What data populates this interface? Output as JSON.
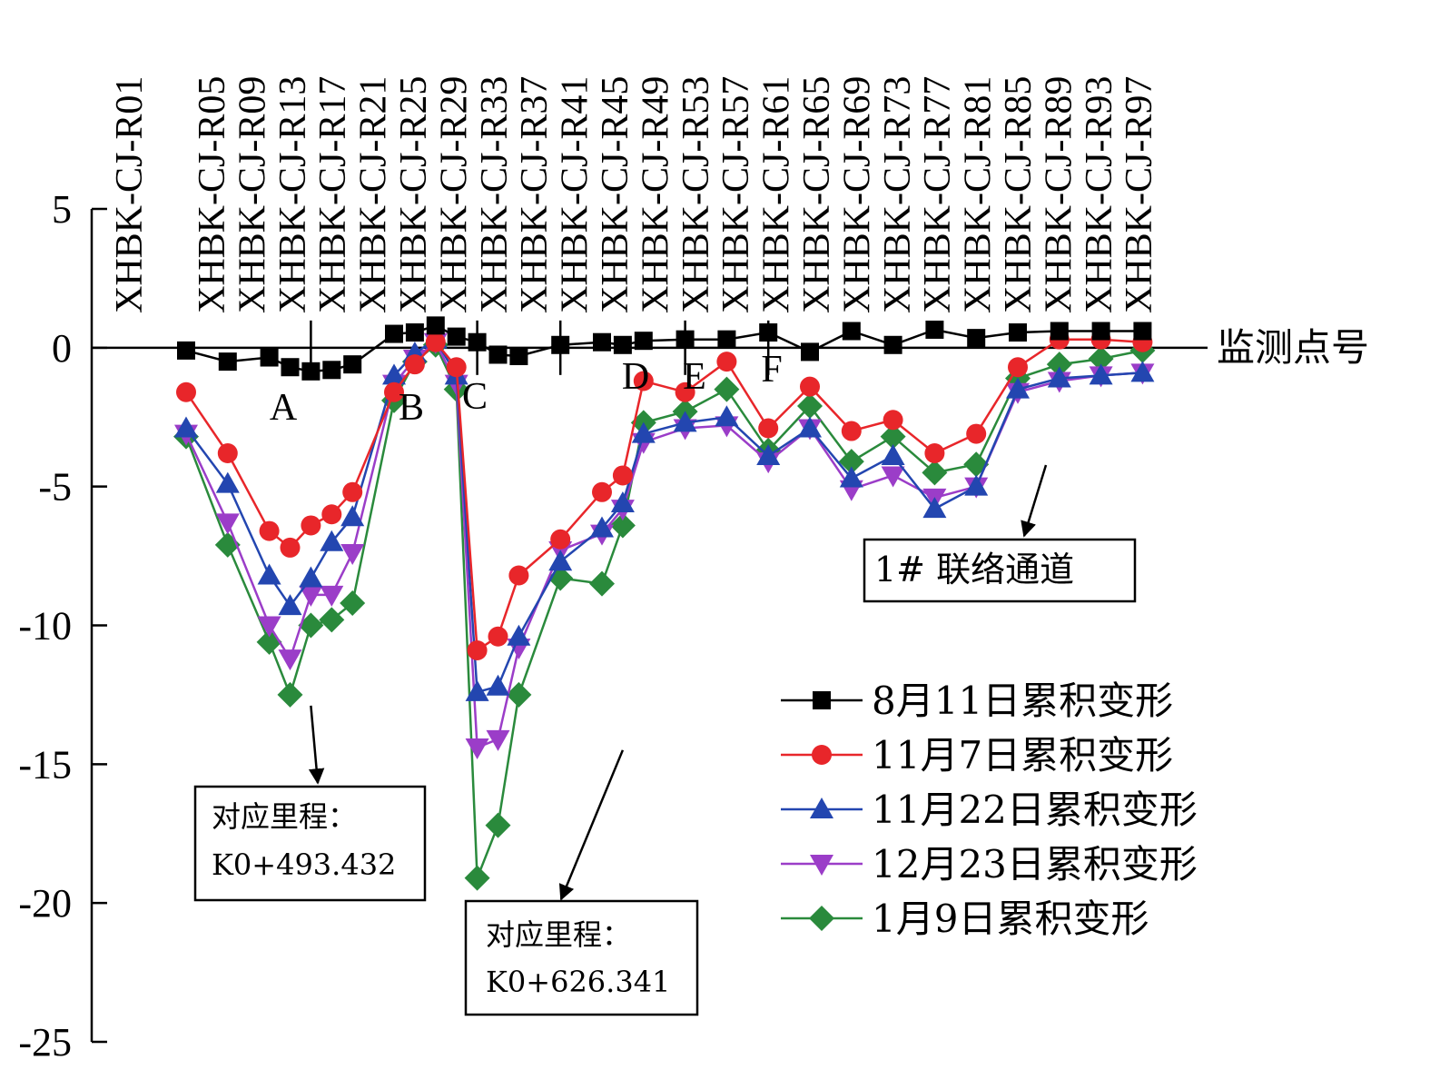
{
  "chart_data": {
    "type": "line",
    "xlabel": "监测点号",
    "ylim": [
      -25,
      5
    ],
    "yticks": [
      5,
      0,
      -5,
      -10,
      -15,
      -20,
      -25
    ],
    "categories": [
      "XHBK-CJ-R01",
      "XHBK-CJ-R05",
      "XHBK-CJ-R09",
      "XHBK-CJ-R13",
      "XHBK-CJ-R17",
      "XHBK-CJ-R21",
      "XHBK-CJ-R25",
      "XHBK-CJ-R29",
      "XHBK-CJ-R33",
      "XHBK-CJ-R37",
      "XHBK-CJ-R41",
      "XHBK-CJ-R45",
      "XHBK-CJ-R49",
      "XHBK-CJ-R53",
      "XHBK-CJ-R57",
      "XHBK-CJ-R61",
      "XHBK-CJ-R65",
      "XHBK-CJ-R69",
      "XHBK-CJ-R73",
      "XHBK-CJ-R77",
      "XHBK-CJ-R81",
      "XHBK-CJ-R85",
      "XHBK-CJ-R89",
      "XHBK-CJ-R93",
      "XHBK-CJ-R97"
    ],
    "x": [
      2,
      3,
      4,
      4.5,
      5,
      5.5,
      6,
      7,
      7.5,
      8,
      8.5,
      9,
      9.5,
      10,
      11,
      12,
      12.5,
      13,
      14,
      15,
      16,
      17,
      18,
      19,
      20,
      21,
      22,
      23,
      24,
      25
    ],
    "series": [
      {
        "name": "8月11日累积变形",
        "color": "#000000",
        "marker": "square",
        "values": [
          -0.1,
          -0.5,
          -0.35,
          -0.7,
          -0.85,
          -0.8,
          -0.6,
          0.5,
          0.55,
          0.8,
          0.4,
          0.2,
          -0.25,
          -0.3,
          0.1,
          0.2,
          0.1,
          0.25,
          0.3,
          0.3,
          0.55,
          -0.15,
          0.6,
          0.1,
          0.65,
          0.35,
          0.55,
          0.6,
          0.6,
          0.6
        ]
      },
      {
        "name": "11月7日累积变形",
        "color": "#e8262a",
        "marker": "circle",
        "values": [
          -1.6,
          -3.8,
          -6.6,
          -7.2,
          -6.4,
          -6.0,
          -5.2,
          -1.6,
          -0.6,
          0.2,
          -0.7,
          -10.9,
          -10.4,
          -8.2,
          -6.9,
          -5.2,
          -4.6,
          -1.2,
          -1.6,
          -0.5,
          -2.9,
          -1.4,
          -3.0,
          -2.6,
          -3.8,
          -3.1,
          -0.7,
          0.3,
          0.3,
          0.2
        ]
      },
      {
        "name": "11月22日累积变形",
        "color": "#2346b0",
        "marker": "triangle-up",
        "values": [
          -2.9,
          -4.9,
          -8.2,
          -9.3,
          -8.3,
          -7.0,
          -6.1,
          -1.0,
          -0.2,
          0.3,
          -1.0,
          -12.4,
          -12.2,
          -10.4,
          -7.7,
          -6.5,
          -5.6,
          -3.1,
          -2.7,
          -2.5,
          -3.9,
          -2.9,
          -4.7,
          -3.9,
          -5.8,
          -5.0,
          -1.5,
          -1.1,
          -1.0,
          -0.9
        ]
      },
      {
        "name": "12月23日累积变形",
        "color": "#9b3dc8",
        "marker": "triangle-down",
        "values": [
          -3.1,
          -6.3,
          -10.0,
          -11.2,
          -8.9,
          -8.9,
          -7.4,
          -1.3,
          -0.4,
          0.2,
          -1.3,
          -14.4,
          -14.1,
          -10.8,
          -7.3,
          -6.7,
          -5.8,
          -3.4,
          -2.9,
          -2.8,
          -4.1,
          -2.9,
          -5.1,
          -4.6,
          -5.4,
          -5.0,
          -1.6,
          -1.2,
          -1.0,
          -0.9
        ]
      },
      {
        "name": "1月9日累积变形",
        "color": "#2a8a3c",
        "marker": "diamond",
        "values": [
          -3.2,
          -7.1,
          -10.6,
          -12.5,
          -10.0,
          -9.8,
          -9.2,
          -1.9,
          -0.5,
          0.1,
          -1.5,
          -19.1,
          -17.2,
          -12.5,
          -8.3,
          -8.5,
          -6.4,
          -2.7,
          -2.3,
          -1.5,
          -3.7,
          -2.1,
          -4.1,
          -3.2,
          -4.5,
          -4.2,
          -1.1,
          -0.6,
          -0.4,
          -0.1
        ]
      }
    ],
    "point_labels": [
      {
        "text": "A",
        "x": 4.5
      },
      {
        "text": "B",
        "x": 9
      },
      {
        "text": "C",
        "x": 11
      },
      {
        "text": "D",
        "x": 14
      },
      {
        "text": "E",
        "x": 15
      },
      {
        "text": "F",
        "x": 16
      }
    ],
    "annotations": [
      {
        "id": "box1",
        "line1": "对应里程：",
        "line2": "K0+493.432"
      },
      {
        "id": "box2",
        "line1": "对应里程：",
        "line2": "K0+626.341"
      },
      {
        "id": "box3",
        "line1": "1# 联络通道",
        "line2": ""
      }
    ],
    "legend_position": "bottom-right",
    "grid": false
  }
}
